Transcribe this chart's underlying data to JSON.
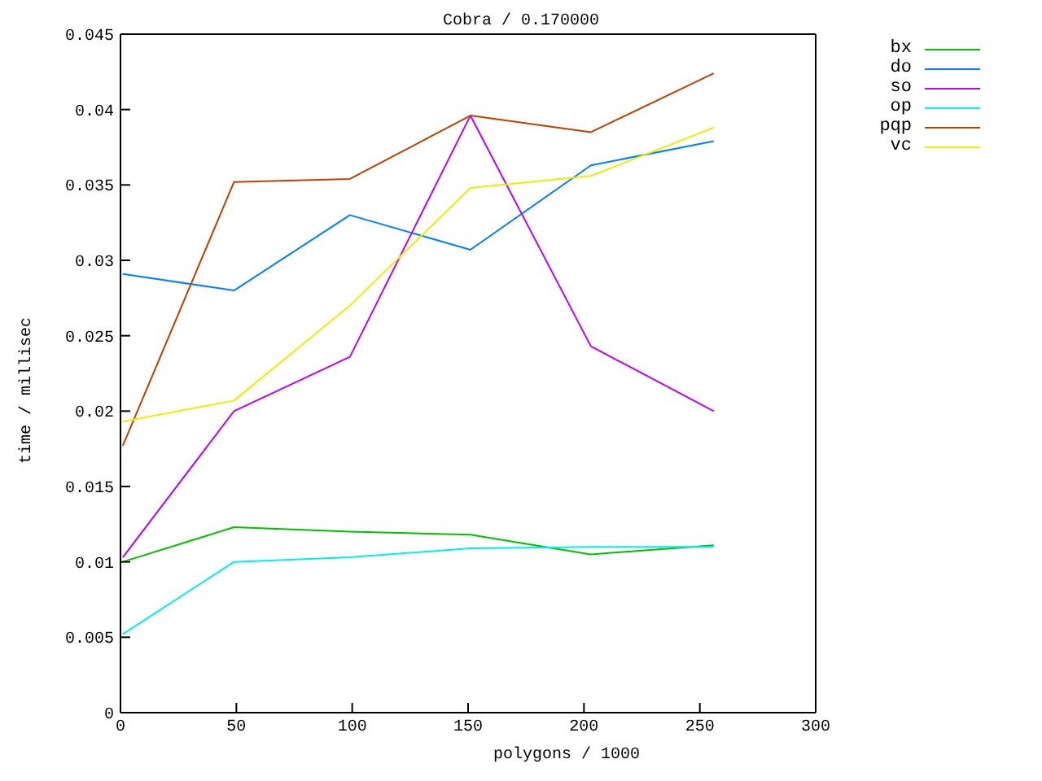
{
  "chart_data": {
    "type": "line",
    "title": "Cobra / 0.170000",
    "xlabel": "polygons / 1000",
    "ylabel": "time / millisec",
    "x": [
      1,
      49,
      99,
      151,
      203,
      256
    ],
    "series": [
      {
        "name": "bx",
        "color": "#00c000",
        "values": [
          0.01,
          0.0123,
          0.012,
          0.0118,
          0.0105,
          0.0111
        ]
      },
      {
        "name": "do",
        "color": "#0080ff",
        "values": [
          0.0291,
          0.028,
          0.033,
          0.0307,
          0.0363,
          0.0379
        ]
      },
      {
        "name": "so",
        "color": "#c000ff",
        "values": [
          0.0103,
          0.02,
          0.0236,
          0.0396,
          0.0243,
          0.02
        ]
      },
      {
        "name": "op",
        "color": "#00eeee",
        "values": [
          0.0052,
          0.01,
          0.0103,
          0.0109,
          0.011,
          0.011
        ]
      },
      {
        "name": "pqp",
        "color": "#c04000",
        "values": [
          0.0177,
          0.0352,
          0.0354,
          0.0396,
          0.0385,
          0.0424
        ]
      },
      {
        "name": "vc",
        "color": "#eeee00",
        "values": [
          0.0193,
          0.0207,
          0.027,
          0.0348,
          0.0356,
          0.0388
        ]
      }
    ],
    "xlim": [
      0,
      300
    ],
    "xticks": [
      0,
      50,
      100,
      150,
      200,
      250,
      300
    ],
    "ylim": [
      0,
      0.045
    ],
    "yticks": [
      0,
      0.005,
      0.01,
      0.015,
      0.02,
      0.025,
      0.03,
      0.035,
      0.04,
      0.045
    ],
    "grid": false,
    "legend": "top right",
    "marker": "none",
    "line_style": "solid"
  }
}
